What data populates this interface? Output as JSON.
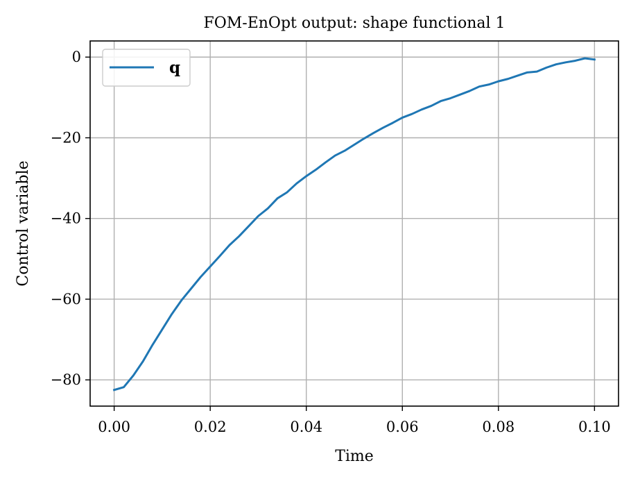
{
  "chart_data": {
    "type": "line",
    "title": "FOM-EnOpt output: shape functional 1",
    "xlabel": "Time",
    "ylabel": "Control variable",
    "xlim": [
      -0.005,
      0.105
    ],
    "ylim": [
      -86.5,
      4.0
    ],
    "xticks": [
      0.0,
      0.02,
      0.04,
      0.06,
      0.08,
      0.1
    ],
    "xtick_labels": [
      "0.00",
      "0.02",
      "0.04",
      "0.06",
      "0.08",
      "0.10"
    ],
    "yticks": [
      0,
      -20,
      -40,
      -60,
      -80
    ],
    "ytick_labels": [
      "0",
      "−20",
      "−40",
      "−60",
      "−80"
    ],
    "grid": true,
    "legend_position": "top-left",
    "colors": {
      "q": "#1f77b4"
    },
    "series": [
      {
        "name": "q",
        "x": [
          0.0,
          0.002,
          0.004,
          0.006,
          0.008,
          0.01,
          0.012,
          0.014,
          0.016,
          0.018,
          0.02,
          0.022,
          0.024,
          0.026,
          0.028,
          0.03,
          0.032,
          0.034,
          0.036,
          0.038,
          0.04,
          0.042,
          0.044,
          0.046,
          0.048,
          0.05,
          0.052,
          0.054,
          0.056,
          0.058,
          0.06,
          0.062,
          0.064,
          0.066,
          0.068,
          0.07,
          0.072,
          0.074,
          0.076,
          0.078,
          0.08,
          0.082,
          0.084,
          0.086,
          0.088,
          0.09,
          0.092,
          0.094,
          0.096,
          0.098,
          0.1
        ],
        "values": [
          -82.5,
          -81.8,
          -78.9,
          -75.4,
          -71.3,
          -67.5,
          -63.7,
          -60.3,
          -57.4,
          -54.5,
          -51.9,
          -49.3,
          -46.6,
          -44.4,
          -41.9,
          -39.4,
          -37.5,
          -35.0,
          -33.5,
          -31.3,
          -29.5,
          -27.9,
          -26.1,
          -24.4,
          -23.2,
          -21.7,
          -20.2,
          -18.8,
          -17.5,
          -16.3,
          -15.0,
          -14.1,
          -13.0,
          -12.1,
          -10.9,
          -10.2,
          -9.3,
          -8.4,
          -7.3,
          -6.8,
          -6.0,
          -5.4,
          -4.6,
          -3.8,
          -3.6,
          -2.6,
          -1.8,
          -1.3,
          -0.9,
          -0.3,
          -0.6
        ]
      }
    ]
  }
}
